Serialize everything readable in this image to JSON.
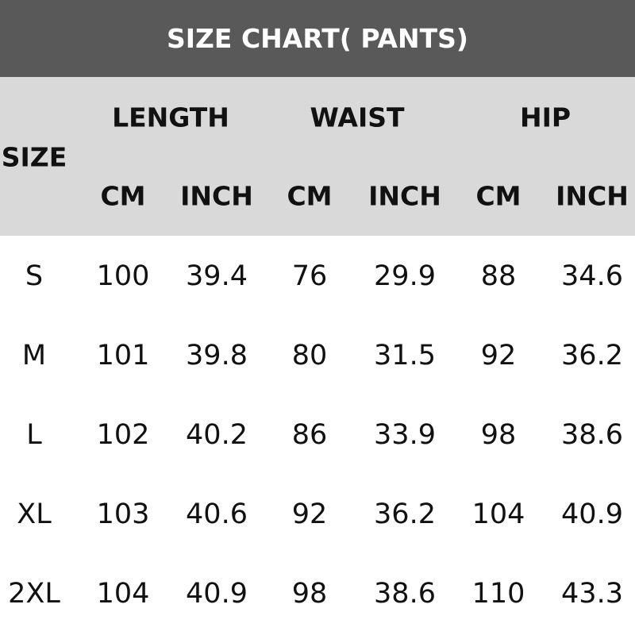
{
  "title": "SIZE CHART( PANTS)",
  "header": {
    "size_label": "SIZE",
    "groups": [
      "LENGTH",
      "WAIST",
      "HIP"
    ],
    "units": [
      "CM",
      "INCH",
      "CM",
      "INCH",
      "CM",
      "INCH"
    ]
  },
  "rows": [
    [
      "S",
      "100",
      "39.4",
      "76",
      "29.9",
      "88",
      "34.6"
    ],
    [
      "M",
      "101",
      "39.8",
      "80",
      "31.5",
      "92",
      "36.2"
    ],
    [
      "L",
      "102",
      "40.2",
      "86",
      "33.9",
      "98",
      "38.6"
    ],
    [
      "XL",
      "103",
      "40.6",
      "92",
      "36.2",
      "104",
      "40.9"
    ],
    [
      "2XL",
      "104",
      "40.9",
      "98",
      "38.6",
      "110",
      "43.3"
    ]
  ],
  "colors": {
    "title_bg": "#595959",
    "header_bg": "#d9d9d9",
    "title_text": "#ffffff"
  }
}
